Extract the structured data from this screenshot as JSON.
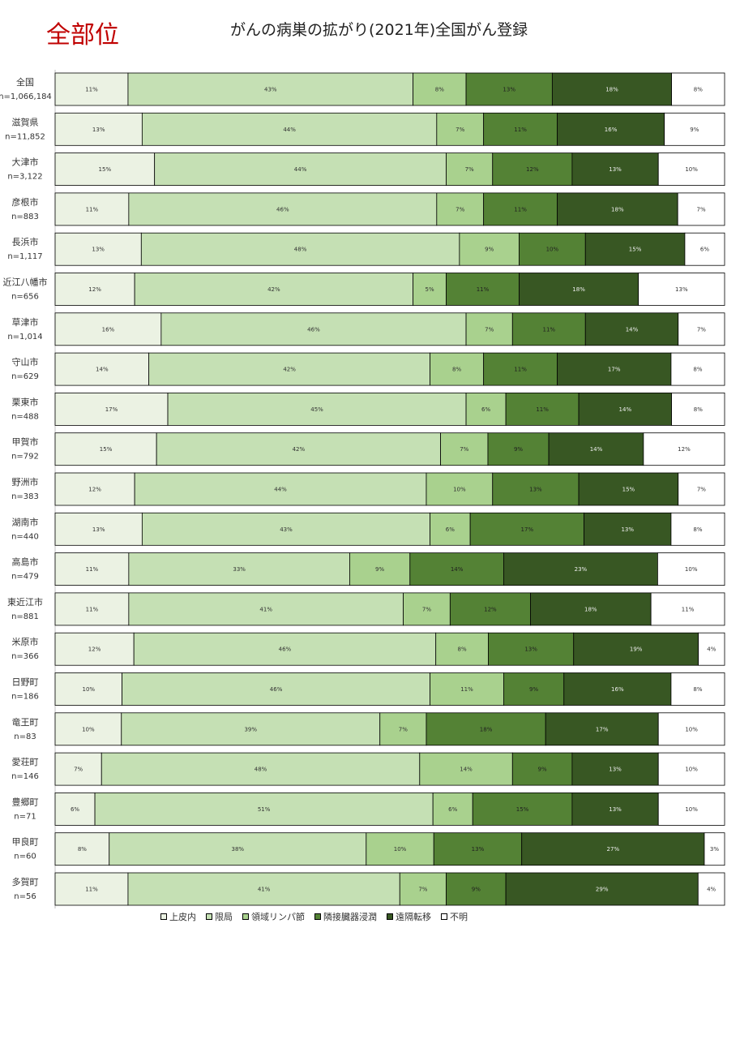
{
  "header": {
    "corner_title": "全部位",
    "title": "がんの病巣の拡がり(2021年)全国がん登録"
  },
  "chart_data": {
    "type": "bar",
    "orientation": "horizontal",
    "stacked": "percent",
    "xlim": [
      0,
      100
    ],
    "grid": false,
    "legend_position": "bottom",
    "series_names": [
      "上皮内",
      "限局",
      "領域リンパ節",
      "隣接臓器浸潤",
      "遠隔転移",
      "不明"
    ],
    "series_colors": [
      "#ebf2e3",
      "#c5e0b4",
      "#a9d18e",
      "#548235",
      "#385723",
      "#ffffff"
    ],
    "series_label_colors": [
      "#333333",
      "#333333",
      "#333333",
      "#1f1f1f",
      "#eeeeee",
      "#333333"
    ],
    "rows": [
      {
        "name": "全国",
        "n": "n=1,066,184",
        "values": [
          11,
          43,
          8,
          13,
          18,
          8
        ]
      },
      {
        "name": "滋賀県",
        "n": "n=11,852",
        "values": [
          13,
          44,
          7,
          11,
          16,
          9
        ]
      },
      {
        "name": "大津市",
        "n": "n=3,122",
        "values": [
          15,
          44,
          7,
          12,
          13,
          10
        ]
      },
      {
        "name": "彦根市",
        "n": "n=883",
        "values": [
          11,
          46,
          7,
          11,
          18,
          7
        ]
      },
      {
        "name": "長浜市",
        "n": "n=1,117",
        "values": [
          13,
          48,
          9,
          10,
          15,
          6
        ]
      },
      {
        "name": "近江八幡市",
        "n": "n=656",
        "values": [
          12,
          42,
          5,
          11,
          18,
          13
        ]
      },
      {
        "name": "草津市",
        "n": "n=1,014",
        "values": [
          16,
          46,
          7,
          11,
          14,
          7
        ]
      },
      {
        "name": "守山市",
        "n": "n=629",
        "values": [
          14,
          42,
          8,
          11,
          17,
          8
        ]
      },
      {
        "name": "栗東市",
        "n": "n=488",
        "values": [
          17,
          45,
          6,
          11,
          14,
          8
        ]
      },
      {
        "name": "甲賀市",
        "n": "n=792",
        "values": [
          15,
          42,
          7,
          9,
          14,
          12
        ]
      },
      {
        "name": "野洲市",
        "n": "n=383",
        "values": [
          12,
          44,
          10,
          13,
          15,
          7
        ]
      },
      {
        "name": "湖南市",
        "n": "n=440",
        "values": [
          13,
          43,
          6,
          17,
          13,
          8
        ]
      },
      {
        "name": "高島市",
        "n": "n=479",
        "values": [
          11,
          33,
          9,
          14,
          23,
          10
        ]
      },
      {
        "name": "東近江市",
        "n": "n=881",
        "values": [
          11,
          41,
          7,
          12,
          18,
          11
        ]
      },
      {
        "name": "米原市",
        "n": "n=366",
        "values": [
          12,
          46,
          8,
          13,
          19,
          4
        ]
      },
      {
        "name": "日野町",
        "n": "n=186",
        "values": [
          10,
          46,
          11,
          9,
          16,
          8
        ]
      },
      {
        "name": "竜王町",
        "n": "n=83",
        "values": [
          10,
          39,
          7,
          18,
          17,
          10
        ]
      },
      {
        "name": "愛荘町",
        "n": "n=146",
        "values": [
          7,
          48,
          14,
          9,
          13,
          10
        ]
      },
      {
        "name": "豊郷町",
        "n": "n=71",
        "values": [
          6,
          51,
          6,
          15,
          13,
          10
        ]
      },
      {
        "name": "甲良町",
        "n": "n=60",
        "values": [
          8,
          38,
          10,
          13,
          27,
          3
        ]
      },
      {
        "name": "多賀町",
        "n": "n=56",
        "values": [
          11,
          41,
          7,
          9,
          29,
          4
        ]
      }
    ]
  }
}
